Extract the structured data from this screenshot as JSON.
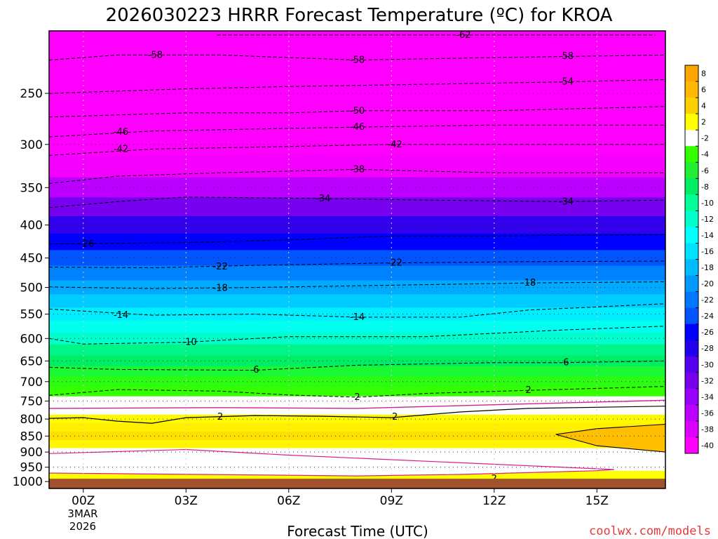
{
  "chart_data": {
    "type": "heatmap",
    "title": "2026030223 HRRR Forecast Temperature (ºC) for KROA",
    "xlabel": "Forecast Time (UTC)",
    "ylabel": "",
    "x_ticks": [
      "00Z",
      "03Z",
      "06Z",
      "09Z",
      "12Z",
      "15Z"
    ],
    "x_date_label": [
      "3MAR",
      "2026"
    ],
    "xlim_hours": [
      -1,
      17
    ],
    "y_ticks": [
      250,
      300,
      350,
      400,
      450,
      500,
      550,
      600,
      650,
      700,
      750,
      800,
      850,
      900,
      950,
      1000
    ],
    "ylim_hPa": [
      200,
      1025
    ],
    "ground_level_hPa": 990,
    "levels": [
      {
        "p": 200,
        "t": -64
      },
      {
        "p": 225,
        "t": -59
      },
      {
        "p": 250,
        "t": -55
      },
      {
        "p": 275,
        "t": -50
      },
      {
        "p": 300,
        "t": -44
      },
      {
        "p": 325,
        "t": -39
      },
      {
        "p": 350,
        "t": -35
      },
      {
        "p": 375,
        "t": -31
      },
      {
        "p": 400,
        "t": -28
      },
      {
        "p": 425,
        "t": -25
      },
      {
        "p": 450,
        "t": -22
      },
      {
        "p": 475,
        "t": -20
      },
      {
        "p": 500,
        "t": -18
      },
      {
        "p": 525,
        "t": -16
      },
      {
        "p": 550,
        "t": -14
      },
      {
        "p": 575,
        "t": -12
      },
      {
        "p": 600,
        "t": -10
      },
      {
        "p": 625,
        "t": -8
      },
      {
        "p": 650,
        "t": -7
      },
      {
        "p": 675,
        "t": -5.5
      },
      {
        "p": 700,
        "t": -4.5
      },
      {
        "p": 725,
        "t": -3
      },
      {
        "p": 750,
        "t": -1
      },
      {
        "p": 775,
        "t": 0.5
      },
      {
        "p": 800,
        "t": 2.5
      },
      {
        "p": 825,
        "t": 3.5
      },
      {
        "p": 850,
        "t": 4.5
      },
      {
        "p": 875,
        "t": 3
      },
      {
        "p": 900,
        "t": 0.5
      },
      {
        "p": 925,
        "t": 0
      },
      {
        "p": 950,
        "t": 1
      },
      {
        "p": 975,
        "t": 2
      }
    ],
    "contours": [
      {
        "value": -62,
        "label": "-62",
        "points": [
          [
            3.9,
            203
          ],
          [
            8.5,
            203
          ],
          [
            16.7,
            203
          ]
        ]
      },
      {
        "value": -58,
        "label": "-58",
        "points": [
          [
            -1,
            222
          ],
          [
            1,
            218
          ],
          [
            4,
            218
          ],
          [
            8,
            222
          ],
          [
            12,
            220
          ],
          [
            17,
            218
          ]
        ]
      },
      {
        "value": -54,
        "label": "-54",
        "points": [
          [
            -1,
            250
          ],
          [
            3,
            246
          ],
          [
            6,
            244
          ],
          [
            10,
            242
          ],
          [
            14,
            240
          ],
          [
            17,
            238
          ]
        ]
      },
      {
        "value": -50,
        "label": "-50",
        "points": [
          [
            -1,
            272
          ],
          [
            3,
            268
          ],
          [
            6,
            268
          ],
          [
            8,
            266
          ],
          [
            12,
            266
          ],
          [
            17,
            262
          ]
        ]
      },
      {
        "value": -46,
        "label": "-46",
        "points": [
          [
            -1,
            292
          ],
          [
            2,
            286
          ],
          [
            5,
            284
          ],
          [
            8,
            282
          ],
          [
            12,
            280
          ],
          [
            17,
            280
          ]
        ]
      },
      {
        "value": -42,
        "label": "-42",
        "points": [
          [
            -1,
            312
          ],
          [
            2,
            305
          ],
          [
            5,
            303
          ],
          [
            9,
            300
          ],
          [
            13,
            300
          ],
          [
            17,
            300
          ]
        ]
      },
      {
        "value": -38,
        "label": "-38",
        "points": [
          [
            -1,
            345
          ],
          [
            1,
            336
          ],
          [
            4,
            332
          ],
          [
            8,
            328
          ],
          [
            12,
            332
          ],
          [
            17,
            332
          ]
        ]
      },
      {
        "value": -34,
        "label": "-34",
        "points": [
          [
            -1,
            376
          ],
          [
            1,
            368
          ],
          [
            3,
            362
          ],
          [
            7,
            364
          ],
          [
            10,
            366
          ],
          [
            14,
            368
          ],
          [
            17,
            366
          ]
        ]
      },
      {
        "value": -26,
        "label": "-26",
        "points": [
          [
            -1,
            428
          ],
          [
            3,
            426
          ],
          [
            6,
            422
          ],
          [
            9,
            416
          ],
          [
            12,
            416
          ],
          [
            17,
            414
          ]
        ]
      },
      {
        "value": -22,
        "label": "-22",
        "points": [
          [
            -1,
            465
          ],
          [
            2,
            466
          ],
          [
            5,
            462
          ],
          [
            9,
            458
          ],
          [
            13,
            456
          ],
          [
            17,
            455
          ]
        ]
      },
      {
        "value": -18,
        "label": "-18",
        "points": [
          [
            -1,
            499
          ],
          [
            2,
            502
          ],
          [
            5,
            500
          ],
          [
            9,
            496
          ],
          [
            13,
            492
          ],
          [
            17,
            490
          ]
        ]
      },
      {
        "value": -14,
        "label": "-14",
        "points": [
          [
            -1,
            540
          ],
          [
            2,
            552
          ],
          [
            5,
            550
          ],
          [
            8,
            556
          ],
          [
            11,
            556
          ],
          [
            13,
            542
          ],
          [
            17,
            530
          ]
        ]
      },
      {
        "value": -10,
        "label": "-10",
        "points": [
          [
            -1,
            600
          ],
          [
            0,
            612
          ],
          [
            3,
            608
          ],
          [
            6,
            596
          ],
          [
            10,
            596
          ],
          [
            14,
            582
          ],
          [
            17,
            574
          ]
        ]
      },
      {
        "value": -6,
        "label": "-6",
        "points": [
          [
            -1,
            665
          ],
          [
            1,
            670
          ],
          [
            5,
            672
          ],
          [
            8,
            660
          ],
          [
            12,
            654
          ],
          [
            14,
            654
          ],
          [
            17,
            650
          ]
        ]
      },
      {
        "value": -2,
        "label": "-2",
        "points": [
          [
            -1,
            735
          ],
          [
            1,
            720
          ],
          [
            4,
            724
          ],
          [
            6,
            734
          ],
          [
            8,
            740
          ],
          [
            10,
            730
          ],
          [
            13,
            722
          ],
          [
            17,
            712
          ]
        ]
      }
    ],
    "zero_line_hPa": [
      [
        -1,
        770
      ],
      [
        4,
        768
      ],
      [
        8,
        770
      ],
      [
        12,
        760
      ],
      [
        17,
        748
      ]
    ],
    "two_degree_contour": [
      [
        -1,
        798
      ],
      [
        0,
        796
      ],
      [
        1,
        806
      ],
      [
        2,
        812
      ],
      [
        3,
        796
      ],
      [
        5,
        790
      ],
      [
        7,
        792
      ],
      [
        9,
        796
      ],
      [
        11,
        780
      ],
      [
        13,
        770
      ],
      [
        17,
        764
      ]
    ],
    "contour_labels": [
      {
        "text": "-62",
        "h": 11.1,
        "p": 203
      },
      {
        "text": "-58",
        "h": 2.1,
        "p": 218
      },
      {
        "text": "-58",
        "h": 8.0,
        "p": 222
      },
      {
        "text": "-58",
        "h": 14.1,
        "p": 219
      },
      {
        "text": "-54",
        "h": 14.1,
        "p": 240
      },
      {
        "text": "-50",
        "h": 8.0,
        "p": 266
      },
      {
        "text": "-46",
        "h": 1.1,
        "p": 287
      },
      {
        "text": "-46",
        "h": 8.0,
        "p": 282
      },
      {
        "text": "-42",
        "h": 1.1,
        "p": 305
      },
      {
        "text": "-42",
        "h": 9.1,
        "p": 300
      },
      {
        "text": "-38",
        "h": 8.0,
        "p": 328
      },
      {
        "text": "-34",
        "h": 7.0,
        "p": 364
      },
      {
        "text": "-34",
        "h": 14.1,
        "p": 368
      },
      {
        "text": "-26",
        "h": 0.1,
        "p": 428
      },
      {
        "text": "-22",
        "h": 4.0,
        "p": 464
      },
      {
        "text": "-22",
        "h": 9.1,
        "p": 458
      },
      {
        "text": "-18",
        "h": 4.0,
        "p": 501
      },
      {
        "text": "-18",
        "h": 13.0,
        "p": 492
      },
      {
        "text": "-14",
        "h": 1.1,
        "p": 552
      },
      {
        "text": "-14",
        "h": 8.0,
        "p": 556
      },
      {
        "text": "-10",
        "h": 3.1,
        "p": 608
      },
      {
        "text": "-6",
        "h": 5.0,
        "p": 671
      },
      {
        "text": "6",
        "h": 14.1,
        "p": 654
      },
      {
        "text": "2",
        "h": 8.0,
        "p": 740
      },
      {
        "text": "2",
        "h": 13.0,
        "p": 722
      },
      {
        "text": "2",
        "h": 4.0,
        "p": 794
      },
      {
        "text": "2",
        "h": 9.1,
        "p": 794
      },
      {
        "text": "2",
        "h": 12.0,
        "p": 990
      }
    ],
    "colorbar": {
      "labels": [
        "8",
        "6",
        "4",
        "2",
        "-2",
        "-4",
        "-6",
        "-8",
        "-10",
        "-12",
        "-14",
        "-16",
        "-18",
        "-20",
        "-22",
        "-24",
        "-26",
        "-28",
        "-30",
        "-32",
        "-34",
        "-36",
        "-38",
        "-40"
      ],
      "colors": [
        "#ffa500",
        "#ffb800",
        "#ffd000",
        "#ffff00",
        "#ffffff",
        "#33ff00",
        "#22ee33",
        "#00ee66",
        "#00ff99",
        "#00ffcc",
        "#00ffff",
        "#00e0ff",
        "#00bbff",
        "#0099ff",
        "#0077ff",
        "#0055ff",
        "#0000ff",
        "#2200ee",
        "#5500ee",
        "#7700ee",
        "#9900ff",
        "#bb00ff",
        "#dd00ff",
        "#ff00ff"
      ]
    },
    "ground_color": "#a0522d",
    "credit": "coolwx.com/models"
  }
}
